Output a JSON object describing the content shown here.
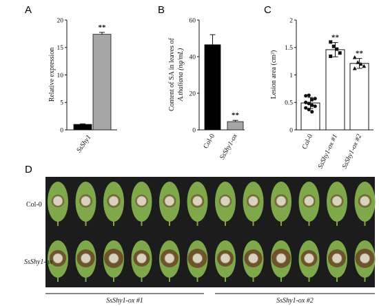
{
  "chart_data": [
    {
      "panel": "A",
      "type": "bar",
      "categories": [
        "SsShy1"
      ],
      "series": [
        {
          "values": [
            1.0
          ],
          "errors": [
            0.1
          ],
          "color": "#000000"
        },
        {
          "values": [
            17.4
          ],
          "errors": [
            0.35
          ],
          "color": "#a6a6a6"
        }
      ],
      "ylabel": "Relative expression",
      "ylim": [
        0,
        20
      ],
      "yticks": [
        "0",
        "5",
        "10",
        "15",
        "20"
      ],
      "significance": [
        "",
        "**"
      ]
    },
    {
      "panel": "B",
      "type": "bar",
      "categories": [
        "Col-0",
        "SsShy1-ox"
      ],
      "values": [
        46.5,
        4.5
      ],
      "errors": [
        5.5,
        0.7
      ],
      "colors": [
        "#000000",
        "#a6a6a6"
      ],
      "ylabel_line1": "Content of SA in leaves of",
      "ylabel_line2": "A.thaliana (ng/mL)",
      "ylim": [
        0,
        60
      ],
      "yticks": [
        "0",
        "20",
        "40",
        "60"
      ],
      "significance": [
        "",
        "**"
      ]
    },
    {
      "panel": "C",
      "type": "bar",
      "categories": [
        "Col-0",
        "SsShy1-ox #1",
        "SsShy1-ox #2"
      ],
      "values": [
        0.49,
        1.46,
        1.21
      ],
      "errors": [
        0.1,
        0.13,
        0.09
      ],
      "points": [
        [
          0.62,
          0.63,
          0.55,
          0.57,
          0.5,
          0.48,
          0.45,
          0.43,
          0.4,
          0.37,
          0.33
        ],
        [
          1.6,
          1.52,
          1.47,
          1.4,
          1.34
        ],
        [
          1.32,
          1.23,
          1.2,
          1.16,
          1.12
        ]
      ],
      "markers": [
        "circle",
        "square",
        "triangle"
      ],
      "ylabel": "Lesion area (cm²)",
      "ylim": [
        0,
        2
      ],
      "yticks": [
        "0",
        "0.5",
        "1",
        "1.5",
        "2"
      ],
      "significance": [
        "",
        "**",
        "**"
      ]
    }
  ],
  "panels": {
    "a": "A",
    "b": "B",
    "c": "C",
    "d": "D"
  },
  "photo": {
    "row1_label": "Col-0",
    "row2_label": "SsShy1-ox",
    "group1_label": "SsShy1-ox #1",
    "group2_label": "SsShy1-ox #2",
    "background_color": "#1c1c1c",
    "leaf_color": "#7fa84a",
    "lesion_color": "#6b4a2a"
  }
}
